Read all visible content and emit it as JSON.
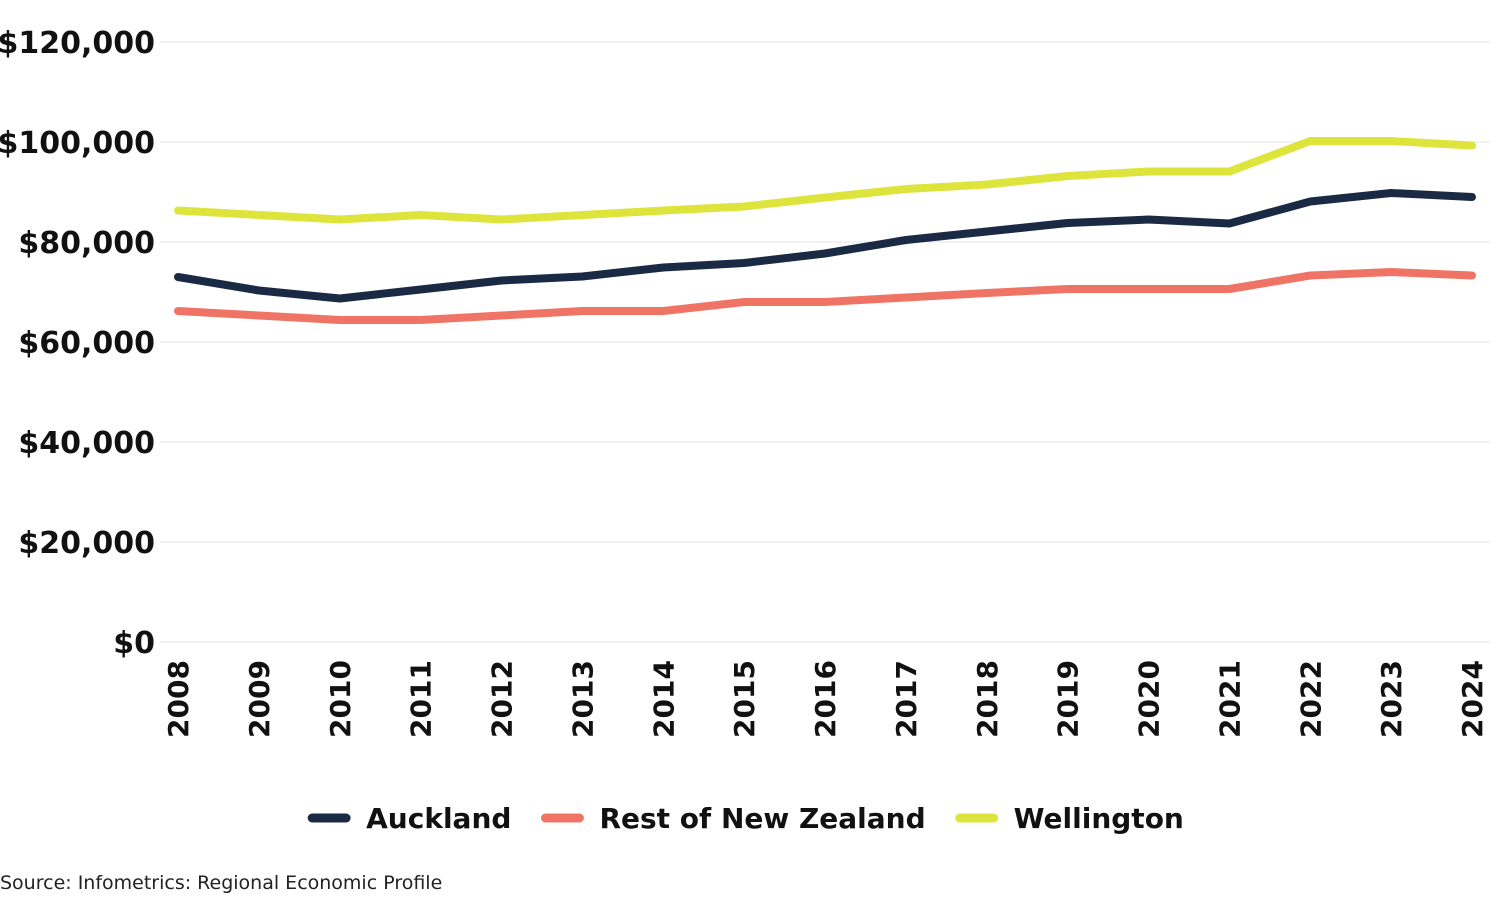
{
  "chart_data": {
    "type": "line",
    "title": "",
    "xlabel": "",
    "ylabel": "",
    "x": [
      "2008",
      "2009",
      "2010",
      "2011",
      "2012",
      "2013",
      "2014",
      "2015",
      "2016",
      "2017",
      "2018",
      "2019",
      "2020",
      "2021",
      "2022",
      "2023",
      "2024"
    ],
    "ylim": [
      0,
      120000
    ],
    "yticks": [
      0,
      20000,
      40000,
      60000,
      80000,
      100000,
      120000
    ],
    "ytick_labels": [
      "$0",
      "$20,000",
      "$40,000",
      "$60,000",
      "$80,000",
      "$100,000",
      "$120,000"
    ],
    "grid": "horizontal",
    "legend_position": "bottom",
    "series": [
      {
        "name": "Auckland",
        "color": "#1b2a44",
        "values": [
          73000,
          70300,
          68700,
          70500,
          72300,
          73100,
          74900,
          75800,
          77700,
          80400,
          82100,
          83800,
          84500,
          83700,
          88100,
          89800,
          89000
        ]
      },
      {
        "name": "Rest of New Zealand",
        "color": "#ef7466",
        "values": [
          66200,
          65300,
          64400,
          64400,
          65300,
          66200,
          66200,
          68000,
          68000,
          68900,
          69800,
          70600,
          70600,
          70600,
          73300,
          74000,
          73300
        ]
      },
      {
        "name": "Wellington",
        "color": "#dde53c",
        "values": [
          86300,
          85400,
          84500,
          85400,
          84500,
          85400,
          86300,
          87100,
          88900,
          90600,
          91500,
          93200,
          94100,
          94100,
          100200,
          100200,
          99300
        ]
      }
    ]
  },
  "source": "Source: Infometrics: Regional Economic Profile"
}
